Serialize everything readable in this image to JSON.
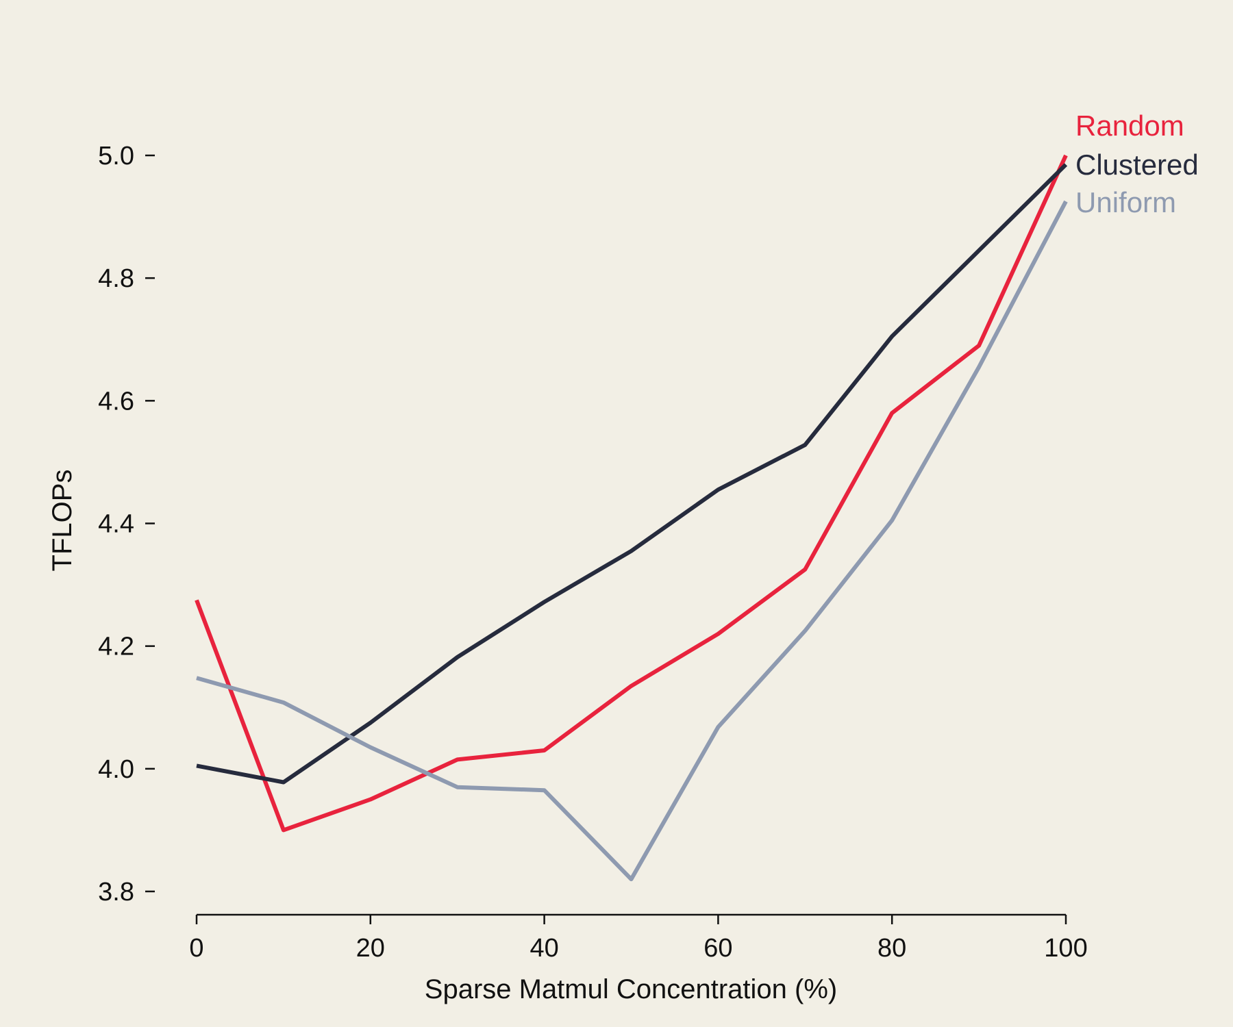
{
  "chart_data": {
    "type": "line",
    "title": "",
    "xlabel": "Sparse Matmul Concentration (%)",
    "ylabel": "TFLOPs",
    "xlim": [
      0,
      100
    ],
    "ylim": [
      3.76,
      5.0
    ],
    "x_ticks": [
      0,
      20,
      40,
      60,
      80,
      100
    ],
    "x_tick_labels": [
      "0",
      "20",
      "40",
      "60",
      "80",
      "100"
    ],
    "y_ticks": [
      3.8,
      4.0,
      4.2,
      4.4,
      4.6,
      4.8,
      5.0
    ],
    "y_tick_labels": [
      "3.8",
      "4.0",
      "4.2",
      "4.4",
      "4.6",
      "4.8",
      "5.0"
    ],
    "grid": false,
    "legend": "direct labels at right end of lines",
    "x": [
      0,
      10,
      20,
      30,
      40,
      50,
      60,
      70,
      80,
      90,
      100
    ],
    "series": [
      {
        "name": "Random",
        "color": "#e8233d",
        "values": [
          4.275,
          3.9,
          3.95,
          4.015,
          4.03,
          4.135,
          4.22,
          4.325,
          4.58,
          4.69,
          5.0
        ]
      },
      {
        "name": "Clustered",
        "color": "#262b3d",
        "values": [
          4.005,
          3.978,
          4.075,
          4.182,
          4.272,
          4.355,
          4.455,
          4.528,
          4.705,
          4.845,
          4.985
        ]
      },
      {
        "name": "Uniform",
        "color": "#8e9ab0",
        "values": [
          4.148,
          4.108,
          4.035,
          3.97,
          3.965,
          3.82,
          4.068,
          4.225,
          4.405,
          4.655,
          4.925
        ]
      }
    ]
  }
}
